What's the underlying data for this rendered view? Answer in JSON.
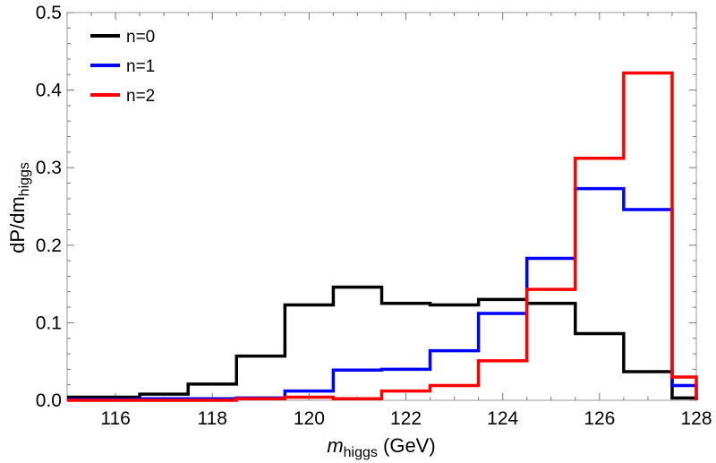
{
  "chart_data": {
    "type": "histogram-step",
    "x_edges": [
      115,
      116.5,
      117.5,
      118.5,
      119.5,
      120.5,
      121.5,
      122.5,
      123.5,
      124.5,
      125.5,
      126.5,
      127.5,
      128
    ],
    "series": [
      {
        "name": "n=0",
        "color": "#000000",
        "values": [
          0.004,
          0.008,
          0.021,
          0.057,
          0.123,
          0.146,
          0.125,
          0.123,
          0.13,
          0.125,
          0.086,
          0.037,
          0.003,
          0.0
        ]
      },
      {
        "name": "n=1",
        "color": "#0000ff",
        "values": [
          0.001,
          0.002,
          0.002,
          0.003,
          0.012,
          0.039,
          0.04,
          0.064,
          0.112,
          0.183,
          0.273,
          0.246,
          0.019,
          0.0
        ]
      },
      {
        "name": "n=2",
        "color": "#ff0000",
        "values": [
          0.0,
          0.0,
          0.0,
          0.002,
          0.004,
          0.002,
          0.012,
          0.019,
          0.051,
          0.143,
          0.312,
          0.422,
          0.03,
          0.0
        ]
      }
    ],
    "xlim": [
      115,
      128
    ],
    "ylim": [
      0,
      0.5
    ],
    "xticks": [
      116,
      118,
      120,
      122,
      124,
      126,
      128
    ],
    "yticks": [
      0.0,
      0.1,
      0.2,
      0.3,
      0.4,
      0.5
    ],
    "xtick_labels": [
      "116",
      "118",
      "120",
      "122",
      "124",
      "126",
      "128"
    ],
    "ytick_labels": [
      "0.0",
      "0.1",
      "0.2",
      "0.3",
      "0.4",
      "0.5"
    ],
    "xlabel": {
      "italic": "m",
      "sub": "higgs",
      "rest": " (GeV)"
    },
    "ylabel": {
      "main": "dP/dm",
      "sub": "higgs"
    },
    "legend_position": "top-left",
    "grid": false
  }
}
